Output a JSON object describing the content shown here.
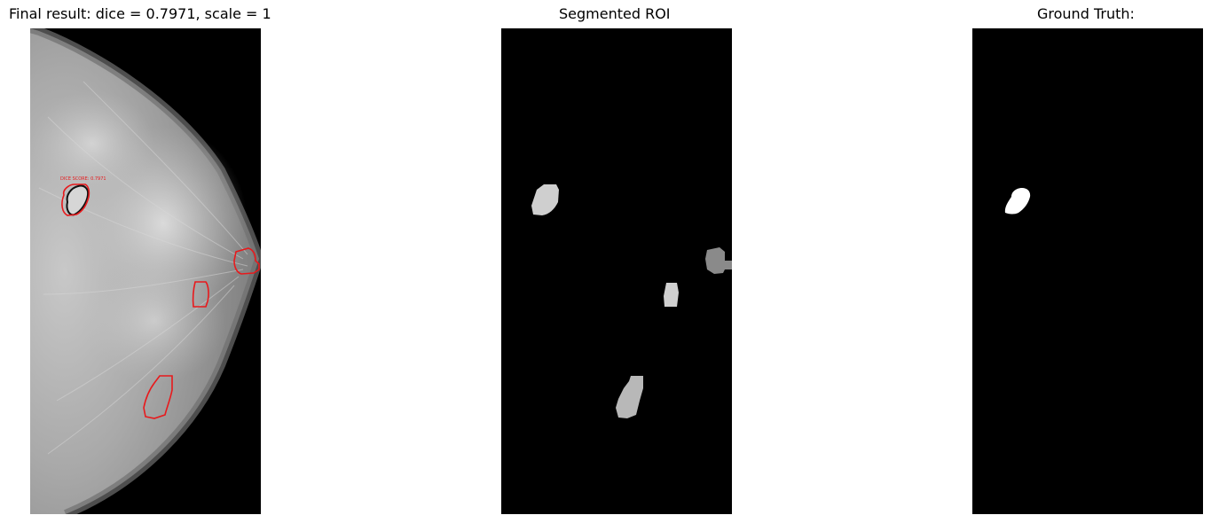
{
  "panels": {
    "overlay": {
      "title": "Final result: dice = 0.7971, scale = 1",
      "annotation": "DICE SCORE: 0.7971"
    },
    "segmented": {
      "title": "Segmented ROI"
    },
    "ground_truth": {
      "title": "Ground Truth:"
    }
  },
  "colors": {
    "contour": "#e8191c",
    "background": "#000000"
  }
}
